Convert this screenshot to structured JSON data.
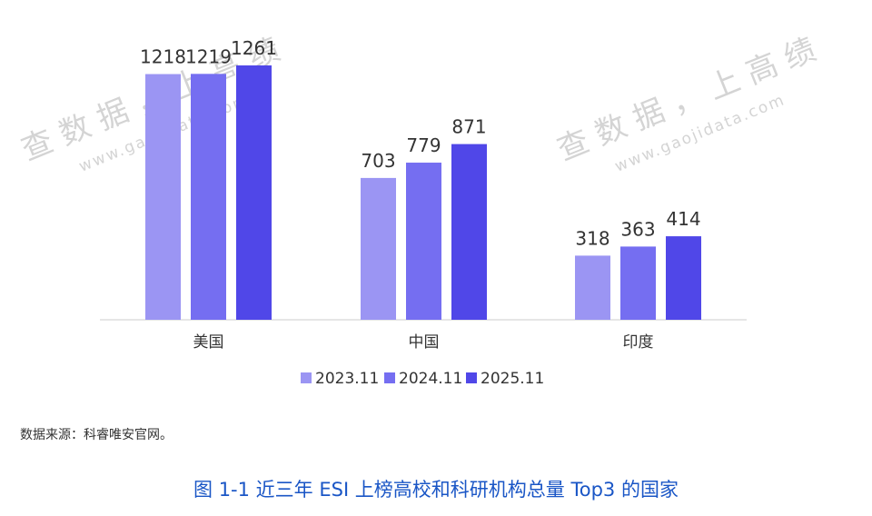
{
  "colors": {
    "series": [
      "#9b95f3",
      "#756ef1",
      "#5047e8"
    ],
    "axis": "#cccccc",
    "caption": "#1a56c6"
  },
  "watermarks": [
    {
      "main": "查 数 据 ， 上 高 绩",
      "sub": "www.gaojidata.com"
    },
    {
      "main": "查 数 据 ， 上 高 绩",
      "sub": "www.gaojidata.com"
    }
  ],
  "chart_data": {
    "type": "bar",
    "categories": [
      "美国",
      "中国",
      "印度"
    ],
    "series": [
      {
        "name": "2023.11",
        "values": [
          1218,
          703,
          318
        ]
      },
      {
        "name": "2024.11",
        "values": [
          1219,
          779,
          363
        ]
      },
      {
        "name": "2025.11",
        "values": [
          1261,
          871,
          414
        ]
      }
    ],
    "ylim": [
      0,
      1261
    ],
    "legend_position": "bottom",
    "grid": false,
    "title": "",
    "xlabel": "",
    "ylabel": ""
  },
  "source_note": "数据来源：科睿唯安官网。",
  "caption": "图 1-1  近三年 ESI 上榜高校和科研机构总量 Top3 的国家"
}
